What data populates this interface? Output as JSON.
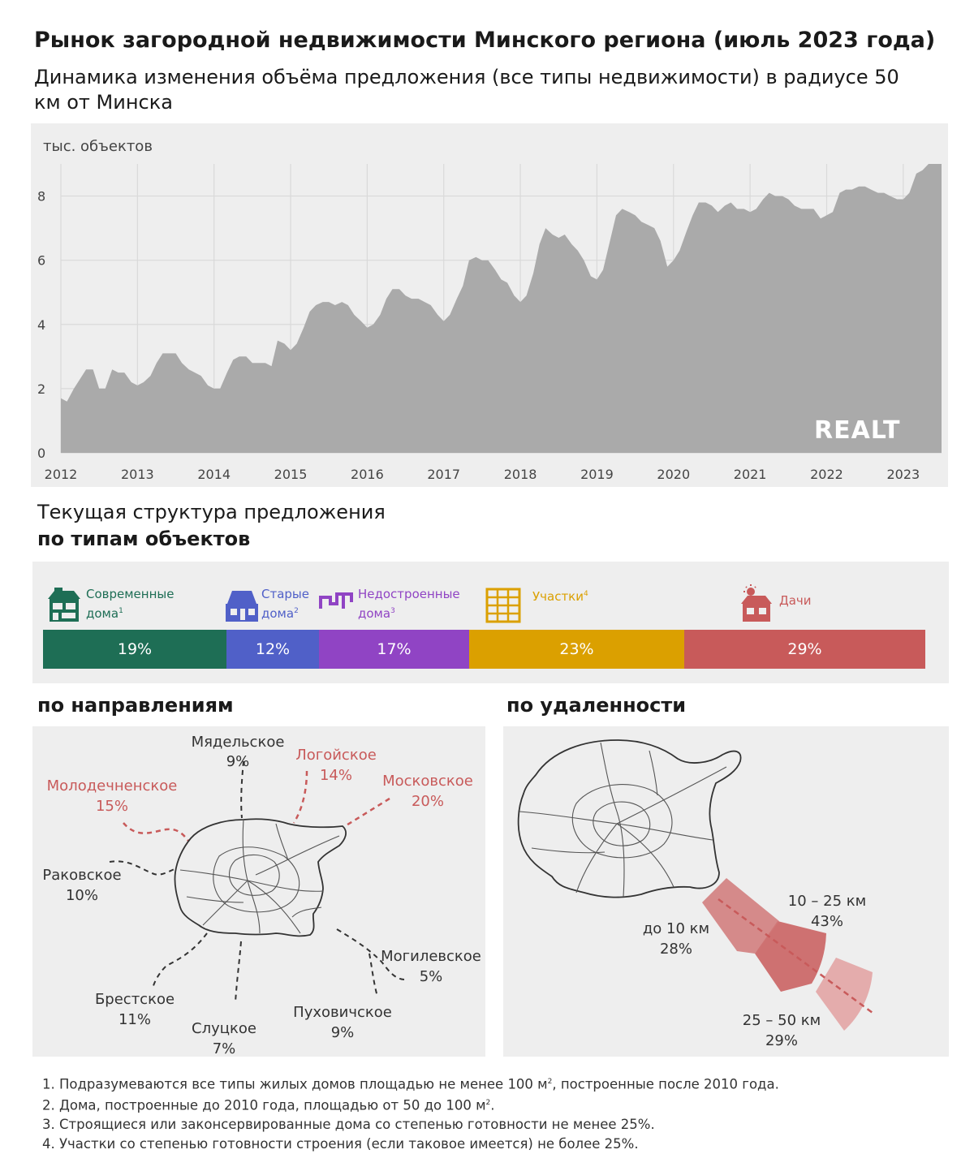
{
  "title": "Рынок загородной недвижимости Минского региона (июль 2023 года)",
  "subtitle": "Динамика изменения объёма предложения (все типы недвижимости) в радиусе 50 км от Минска",
  "brand": "REALT",
  "colors": {
    "area": "#aaaaaa",
    "panel": "#eeeeee",
    "grid": "#d9d9d9",
    "red": "#c85a5a"
  },
  "chart_data": {
    "type": "area",
    "ylabel": "тыс.  объектов",
    "ylim": [
      0,
      9
    ],
    "yticks": [
      0,
      2,
      4,
      6,
      8
    ],
    "x_tick_labels": [
      "2012",
      "2013",
      "2014",
      "2015",
      "2016",
      "2017",
      "2018",
      "2019",
      "2020",
      "2021",
      "2022",
      "2023"
    ],
    "x_range": [
      2012.0,
      2023.5
    ],
    "grid": true,
    "series": [
      {
        "x": [
          2012.0,
          2012.08,
          2012.17,
          2012.25,
          2012.33,
          2012.42,
          2012.5,
          2012.58,
          2012.67,
          2012.75,
          2012.83,
          2012.92,
          2013.0,
          2013.08,
          2013.17,
          2013.25,
          2013.33,
          2013.42,
          2013.5,
          2013.58,
          2013.67,
          2013.75,
          2013.83,
          2013.92,
          2014.0,
          2014.08,
          2014.17,
          2014.25,
          2014.33,
          2014.42,
          2014.5,
          2014.58,
          2014.67,
          2014.75,
          2014.83,
          2014.92,
          2015.0,
          2015.08,
          2015.17,
          2015.25,
          2015.33,
          2015.42,
          2015.5,
          2015.58,
          2015.67,
          2015.75,
          2015.83,
          2015.92,
          2016.0,
          2016.08,
          2016.17,
          2016.25,
          2016.33,
          2016.42,
          2016.5,
          2016.58,
          2016.67,
          2016.75,
          2016.83,
          2016.92,
          2017.0,
          2017.08,
          2017.17,
          2017.25,
          2017.33,
          2017.42,
          2017.5,
          2017.58,
          2017.67,
          2017.75,
          2017.83,
          2017.92,
          2018.0,
          2018.08,
          2018.17,
          2018.25,
          2018.33,
          2018.42,
          2018.5,
          2018.58,
          2018.67,
          2018.75,
          2018.83,
          2018.92,
          2019.0,
          2019.08,
          2019.17,
          2019.25,
          2019.33,
          2019.42,
          2019.5,
          2019.58,
          2019.67,
          2019.75,
          2019.83,
          2019.92,
          2020.0,
          2020.08,
          2020.17,
          2020.25,
          2020.33,
          2020.42,
          2020.5,
          2020.58,
          2020.67,
          2020.75,
          2020.83,
          2020.92,
          2021.0,
          2021.08,
          2021.17,
          2021.25,
          2021.33,
          2021.42,
          2021.5,
          2021.58,
          2021.67,
          2021.75,
          2021.83,
          2021.92,
          2022.0,
          2022.08,
          2022.17,
          2022.25,
          2022.33,
          2022.42,
          2022.5,
          2022.58,
          2022.67,
          2022.75,
          2022.83,
          2022.92,
          2023.0,
          2023.08,
          2023.17,
          2023.25,
          2023.33,
          2023.42,
          2023.5
        ],
        "y": [
          1.7,
          1.6,
          2.0,
          2.3,
          2.6,
          2.6,
          2.0,
          2.0,
          2.6,
          2.5,
          2.5,
          2.2,
          2.1,
          2.2,
          2.4,
          2.8,
          3.1,
          3.1,
          3.1,
          2.8,
          2.6,
          2.5,
          2.4,
          2.1,
          2.0,
          2.0,
          2.5,
          2.9,
          3.0,
          3.0,
          2.8,
          2.8,
          2.8,
          2.7,
          3.5,
          3.4,
          3.2,
          3.4,
          3.9,
          4.4,
          4.6,
          4.7,
          4.7,
          4.6,
          4.7,
          4.6,
          4.3,
          4.1,
          3.9,
          4.0,
          4.3,
          4.8,
          5.1,
          5.1,
          4.9,
          4.8,
          4.8,
          4.7,
          4.6,
          4.3,
          4.1,
          4.3,
          4.8,
          5.2,
          6.0,
          6.1,
          6.0,
          6.0,
          5.7,
          5.4,
          5.3,
          4.9,
          4.7,
          4.9,
          5.6,
          6.5,
          7.0,
          6.8,
          6.7,
          6.8,
          6.5,
          6.3,
          6.0,
          5.5,
          5.4,
          5.7,
          6.6,
          7.4,
          7.6,
          7.5,
          7.4,
          7.2,
          7.1,
          7.0,
          6.6,
          5.8,
          6.0,
          6.3,
          6.9,
          7.4,
          7.8,
          7.8,
          7.7,
          7.5,
          7.7,
          7.8,
          7.6,
          7.6,
          7.5,
          7.6,
          7.9,
          8.1,
          8.0,
          8.0,
          7.9,
          7.7,
          7.6,
          7.6,
          7.6,
          7.3,
          7.4,
          7.5,
          8.1,
          8.2,
          8.2,
          8.3,
          8.3,
          8.2,
          8.1,
          8.1,
          8.0,
          7.9,
          7.9,
          8.1,
          8.7,
          8.8,
          9.0,
          9.0,
          9.0
        ]
      }
    ]
  },
  "structure": {
    "title_line1": "Текущая структура предложения",
    "title_line2": "по типам объектов",
    "items": [
      {
        "label1": "Современные",
        "label2": "дома",
        "sup": "1",
        "value": 19,
        "text": "19%",
        "color": "#1e6e55",
        "icon": "modern-house-icon"
      },
      {
        "label1": "Старые",
        "label2": "дома",
        "sup": "2",
        "value": 12,
        "text": "12%",
        "color": "#5060c8",
        "icon": "old-house-icon"
      },
      {
        "label1": "Недостроенные",
        "label2": "дома",
        "sup": "3",
        "value": 17,
        "text": "17%",
        "color": "#9044c4",
        "icon": "unfinished-house-icon"
      },
      {
        "label1": "Участки",
        "label2": "",
        "sup": "4",
        "value": 23,
        "text": "23%",
        "color": "#dba000",
        "icon": "land-plot-icon"
      },
      {
        "label1": "Дачи",
        "label2": "",
        "sup": "",
        "value": 29,
        "text": "29%",
        "color": "#c85a5a",
        "icon": "dacha-icon"
      }
    ]
  },
  "directions": {
    "title": "по направлениям",
    "items": [
      {
        "name": "Мядельское",
        "pct": "9%",
        "highlight": false
      },
      {
        "name": "Логойское",
        "pct": "14%",
        "highlight": true
      },
      {
        "name": "Московское",
        "pct": "20%",
        "highlight": true
      },
      {
        "name": "Молодечненское",
        "pct": "15%",
        "highlight": true
      },
      {
        "name": "Раковское",
        "pct": "10%",
        "highlight": false
      },
      {
        "name": "Могилевское",
        "pct": "5%",
        "highlight": false
      },
      {
        "name": "Брестское",
        "pct": "11%",
        "highlight": false
      },
      {
        "name": "Пуховичское",
        "pct": "9%",
        "highlight": false
      },
      {
        "name": "Слуцкое",
        "pct": "7%",
        "highlight": false
      }
    ]
  },
  "distance": {
    "title": "по удаленности",
    "items": [
      {
        "name": "до 10 км",
        "pct": "28%"
      },
      {
        "name": "10 – 25 км",
        "pct": "43%"
      },
      {
        "name": "25 – 50 км",
        "pct": "29%"
      }
    ]
  },
  "notes": {
    "n1_pre": "1. Подразумеваются все типы жилых домов площадью не менее 100 м",
    "n1_sup": "2",
    "n1_post": ", построенные после 2010 года.",
    "n2_pre": "2. Дома, построенные до 2010 года, площадью от 50 до 100 м",
    "n2_sup": "2",
    "n2_post": ".",
    "n3": "3. Строящиеся или законсервированные дома со степенью готовности не менее 25%.",
    "n4": "4. Участки со степенью готовности строения (если таковое имеется) не более 25%."
  }
}
